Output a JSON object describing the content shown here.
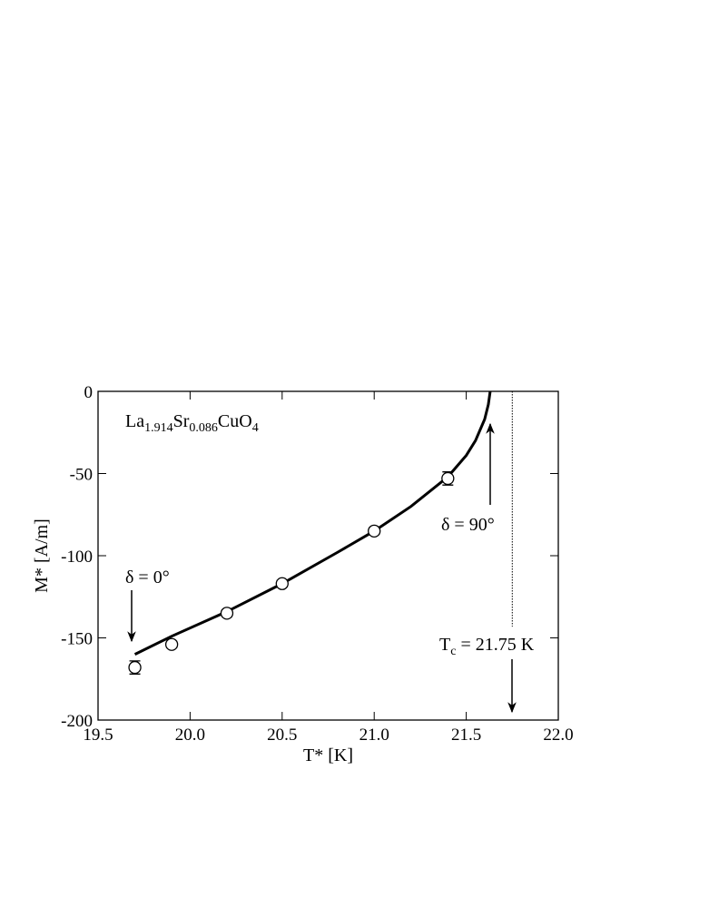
{
  "chart_data": {
    "type": "scatter",
    "xlabel": "T* [K]",
    "ylabel": "M* [A/m]",
    "xlim": [
      19.5,
      22.0
    ],
    "ylim": [
      -200,
      0
    ],
    "xticks": [
      19.5,
      {
        "value": 20,
        "label": "20.0"
      },
      20.5,
      {
        "value": 21,
        "label": "21.0"
      },
      21.5,
      {
        "value": 22,
        "label": "22.0"
      }
    ],
    "yticks": [
      0,
      -50,
      -100,
      -150,
      -200
    ],
    "points": {
      "x": [
        19.7,
        19.9,
        20.2,
        20.5,
        21.0,
        21.4
      ],
      "values": [
        -168,
        -154,
        -135,
        -117,
        -85,
        -53
      ],
      "errors": [
        4,
        2,
        2,
        2,
        2,
        4
      ]
    },
    "fit": {
      "x": [
        19.7,
        19.9,
        20.2,
        20.5,
        20.8,
        21.0,
        21.2,
        21.4,
        21.5,
        21.55,
        21.6,
        21.62,
        21.63
      ],
      "values": [
        -160,
        -149,
        -134,
        -117,
        -98,
        -85,
        -70,
        -52,
        -39,
        -30,
        -17,
        -8,
        0
      ]
    },
    "tc_line": {
      "x": 21.75
    },
    "annotations": {
      "formula": [
        {
          "text": "La"
        },
        {
          "text": "1.914",
          "sub": true
        },
        {
          "text": "Sr"
        },
        {
          "text": "0.086",
          "sub": true
        },
        {
          "text": "CuO"
        },
        {
          "text": "4",
          "sub": true
        }
      ],
      "delta0": "δ = 0°",
      "delta90": "δ = 90°",
      "tc": [
        {
          "text": "T"
        },
        {
          "text": "c",
          "sub": true
        },
        {
          "text": " = 21.75 K"
        }
      ]
    }
  }
}
